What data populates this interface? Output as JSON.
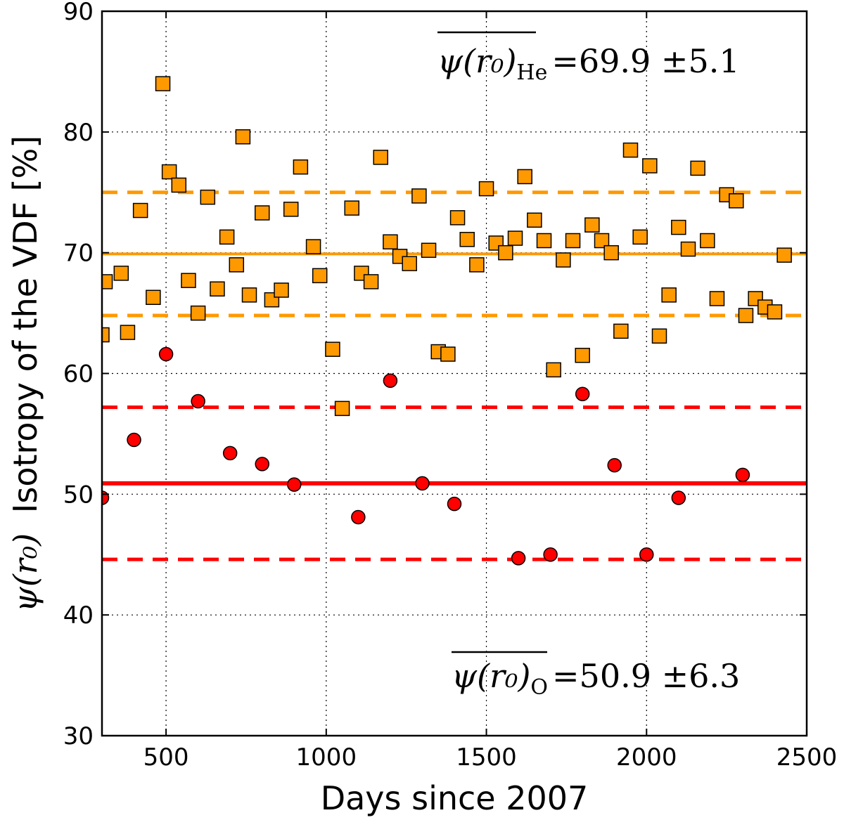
{
  "chart_data": {
    "type": "scatter",
    "xlabel": "Days since 2007",
    "ylabel_symbol": "ψ(r₀)",
    "ylabel_text": "Isotropy of the VDF [%]",
    "xlim": [
      300,
      2500
    ],
    "ylim": [
      30,
      90
    ],
    "xticks": [
      500,
      1000,
      1500,
      2000,
      2500
    ],
    "yticks": [
      30,
      40,
      50,
      60,
      70,
      80,
      90
    ],
    "grid": true,
    "colors": {
      "He": "#ff9900",
      "O": "#ff0000",
      "edge": "#000000",
      "grid": "#000000"
    },
    "annotations": {
      "He": {
        "lhs": "ψ(r₀)",
        "subscript": "He",
        "rhs": "=69.9 ±5.1"
      },
      "O": {
        "lhs": "ψ(r₀)",
        "subscript": "O",
        "rhs": "=50.9 ±6.3"
      }
    },
    "series": [
      {
        "name": "He",
        "marker": "square",
        "mean": 69.9,
        "upper": 75.0,
        "lower": 64.8,
        "points": [
          [
            300,
            63.2
          ],
          [
            310,
            67.6
          ],
          [
            360,
            68.3
          ],
          [
            380,
            63.4
          ],
          [
            420,
            73.5
          ],
          [
            460,
            66.3
          ],
          [
            490,
            84.0
          ],
          [
            510,
            76.7
          ],
          [
            540,
            75.6
          ],
          [
            570,
            67.7
          ],
          [
            600,
            65.0
          ],
          [
            630,
            74.6
          ],
          [
            660,
            67.0
          ],
          [
            690,
            71.3
          ],
          [
            720,
            69.0
          ],
          [
            740,
            79.6
          ],
          [
            760,
            66.5
          ],
          [
            800,
            73.3
          ],
          [
            830,
            66.1
          ],
          [
            860,
            66.9
          ],
          [
            890,
            73.6
          ],
          [
            920,
            77.1
          ],
          [
            960,
            70.5
          ],
          [
            980,
            68.1
          ],
          [
            1020,
            62.0
          ],
          [
            1050,
            57.1
          ],
          [
            1080,
            73.7
          ],
          [
            1110,
            68.3
          ],
          [
            1140,
            67.6
          ],
          [
            1170,
            77.9
          ],
          [
            1200,
            70.9
          ],
          [
            1230,
            69.7
          ],
          [
            1260,
            69.1
          ],
          [
            1290,
            74.7
          ],
          [
            1320,
            70.2
          ],
          [
            1350,
            61.8
          ],
          [
            1380,
            61.6
          ],
          [
            1410,
            72.9
          ],
          [
            1440,
            71.1
          ],
          [
            1470,
            69.0
          ],
          [
            1500,
            75.3
          ],
          [
            1530,
            70.8
          ],
          [
            1560,
            70.0
          ],
          [
            1590,
            71.2
          ],
          [
            1620,
            76.3
          ],
          [
            1650,
            72.7
          ],
          [
            1680,
            71.0
          ],
          [
            1710,
            60.3
          ],
          [
            1740,
            69.4
          ],
          [
            1770,
            71.0
          ],
          [
            1800,
            61.5
          ],
          [
            1830,
            72.3
          ],
          [
            1860,
            71.0
          ],
          [
            1890,
            70.0
          ],
          [
            1920,
            63.5
          ],
          [
            1950,
            78.5
          ],
          [
            1980,
            71.3
          ],
          [
            2010,
            77.2
          ],
          [
            2040,
            63.1
          ],
          [
            2070,
            66.5
          ],
          [
            2100,
            72.1
          ],
          [
            2130,
            70.3
          ],
          [
            2160,
            77.0
          ],
          [
            2190,
            71.0
          ],
          [
            2220,
            66.2
          ],
          [
            2250,
            74.8
          ],
          [
            2280,
            74.3
          ],
          [
            2310,
            64.8
          ],
          [
            2340,
            66.2
          ],
          [
            2370,
            65.5
          ],
          [
            2400,
            65.1
          ],
          [
            2430,
            69.8
          ]
        ]
      },
      {
        "name": "O",
        "marker": "circle",
        "mean": 50.9,
        "upper": 57.2,
        "lower": 44.6,
        "points": [
          [
            300,
            49.7
          ],
          [
            400,
            54.5
          ],
          [
            500,
            61.6
          ],
          [
            600,
            57.7
          ],
          [
            700,
            53.4
          ],
          [
            800,
            52.5
          ],
          [
            900,
            50.8
          ],
          [
            1100,
            48.1
          ],
          [
            1200,
            59.4
          ],
          [
            1300,
            50.9
          ],
          [
            1400,
            49.2
          ],
          [
            1600,
            44.7
          ],
          [
            1700,
            45.0
          ],
          [
            1800,
            58.3
          ],
          [
            1900,
            52.4
          ],
          [
            2000,
            45.0
          ],
          [
            2100,
            49.7
          ],
          [
            2300,
            51.6
          ]
        ]
      }
    ]
  }
}
